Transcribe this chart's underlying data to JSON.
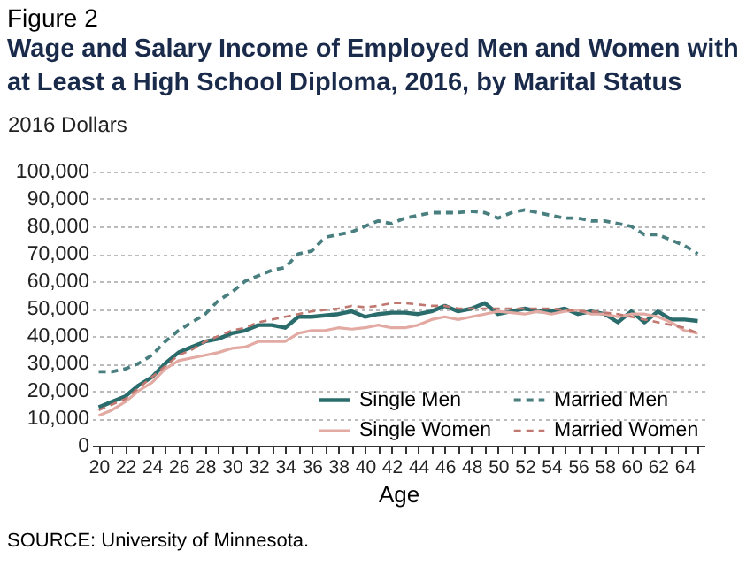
{
  "chart_data": {
    "type": "line",
    "subtitle": "Figure 2",
    "title": "Wage and Salary Income of Employed Men and Women with at Least a High School Diploma, 2016, by Marital Status",
    "ylabel": "2016 Dollars",
    "xlabel": "Age",
    "annotations": [
      "SOURCE: University of Minnesota."
    ],
    "x": [
      20,
      21,
      22,
      23,
      24,
      25,
      26,
      27,
      28,
      29,
      30,
      31,
      32,
      33,
      34,
      35,
      36,
      37,
      38,
      39,
      40,
      41,
      42,
      43,
      44,
      45,
      46,
      47,
      48,
      49,
      50,
      51,
      52,
      53,
      54,
      55,
      56,
      57,
      58,
      59,
      60,
      61,
      62,
      63,
      64,
      65
    ],
    "series": [
      {
        "name": "Single Men",
        "color": "#2a6b6b",
        "line_style": "solid",
        "values": [
          14000,
          16000,
          18000,
          22000,
          25000,
          30000,
          34000,
          36000,
          38000,
          39000,
          41000,
          42000,
          44000,
          44000,
          43000,
          47000,
          47000,
          47500,
          48000,
          49000,
          47000,
          48000,
          48500,
          48500,
          48000,
          49000,
          51000,
          49000,
          50000,
          52000,
          48000,
          49000,
          50000,
          49000,
          49000,
          50000,
          48000,
          49000,
          48000,
          45000,
          49000,
          45000,
          49000,
          46000,
          46000,
          45500
        ]
      },
      {
        "name": "Married Men",
        "color": "#4a7f80",
        "line_style": "dashed",
        "values": [
          27000,
          27000,
          28000,
          30000,
          33000,
          38000,
          42000,
          45000,
          48000,
          53000,
          56000,
          60000,
          62000,
          64000,
          65000,
          70000,
          71000,
          76000,
          77000,
          78000,
          80000,
          82000,
          81000,
          83000,
          84000,
          85000,
          85000,
          85000,
          85500,
          85000,
          83000,
          85000,
          86000,
          85000,
          84000,
          83000,
          83000,
          82000,
          82000,
          81000,
          80000,
          77000,
          77000,
          75000,
          73000,
          70000
        ]
      },
      {
        "name": "Single Women",
        "color": "#e2aaa2",
        "line_style": "solid",
        "values": [
          11000,
          13000,
          16000,
          20000,
          23000,
          28000,
          31000,
          32000,
          33000,
          34000,
          35500,
          36000,
          38000,
          38000,
          38000,
          41000,
          42000,
          42000,
          43000,
          42500,
          43000,
          44000,
          43000,
          43000,
          44000,
          46000,
          47000,
          46000,
          47000,
          48000,
          49000,
          48500,
          48000,
          49000,
          48000,
          49000,
          49500,
          48000,
          48000,
          47000,
          48000,
          48000,
          47000,
          45000,
          42000,
          41000
        ]
      },
      {
        "name": "Married Women",
        "color": "#c07870",
        "line_style": "dashed",
        "values": [
          13000,
          15000,
          17000,
          21000,
          25000,
          29000,
          33000,
          35000,
          38000,
          40000,
          42000,
          43000,
          45000,
          46000,
          47000,
          48000,
          49000,
          49500,
          50000,
          51000,
          50500,
          51000,
          52000,
          52000,
          51500,
          51000,
          51000,
          50000,
          50000,
          50000,
          50000,
          50000,
          50000,
          50000,
          50000,
          49500,
          49000,
          49000,
          48500,
          48000,
          47000,
          46000,
          45000,
          44000,
          43000,
          41000
        ]
      }
    ],
    "xlim": [
      19.5,
      65.5
    ],
    "xticks": [
      20,
      {
        "value": 21,
        "label": null
      },
      22,
      {
        "value": 23,
        "label": null
      },
      24,
      {
        "value": 25,
        "label": null
      },
      26,
      {
        "value": 27,
        "label": null
      },
      28,
      {
        "value": 29,
        "label": null
      },
      30,
      {
        "value": 31,
        "label": null
      },
      32,
      {
        "value": 33,
        "label": null
      },
      34,
      {
        "value": 35,
        "label": null
      },
      36,
      {
        "value": 37,
        "label": null
      },
      38,
      {
        "value": 39,
        "label": null
      },
      40,
      {
        "value": 41,
        "label": null
      },
      42,
      {
        "value": 43,
        "label": null
      },
      44,
      {
        "value": 45,
        "label": null
      },
      46,
      {
        "value": 47,
        "label": null
      },
      48,
      {
        "value": 49,
        "label": null
      },
      50,
      {
        "value": 51,
        "label": null
      },
      52,
      {
        "value": 53,
        "label": null
      },
      54,
      {
        "value": 55,
        "label": null
      },
      56,
      {
        "value": 57,
        "label": null
      },
      58,
      {
        "value": 59,
        "label": null
      },
      60,
      {
        "value": 61,
        "label": null
      },
      62,
      {
        "value": 63,
        "label": null
      },
      64,
      {
        "value": 65,
        "label": null
      }
    ],
    "ylim": [
      0,
      100000
    ],
    "yticks": [
      {
        "value": 0,
        "label": "0"
      },
      {
        "value": 10000,
        "label": "10,000"
      },
      {
        "value": 20000,
        "label": "20,000"
      },
      {
        "value": 30000,
        "label": "30,000"
      },
      {
        "value": 40000,
        "label": "40,000"
      },
      {
        "value": 50000,
        "label": "50,000"
      },
      {
        "value": 60000,
        "label": "60,000"
      },
      {
        "value": 70000,
        "label": "70,000"
      },
      {
        "value": 80000,
        "label": "80,000"
      },
      {
        "value": 90000,
        "label": "90,000"
      },
      {
        "value": 100000,
        "label": "100,000"
      }
    ],
    "grid": "y",
    "legend": "bottom right"
  }
}
